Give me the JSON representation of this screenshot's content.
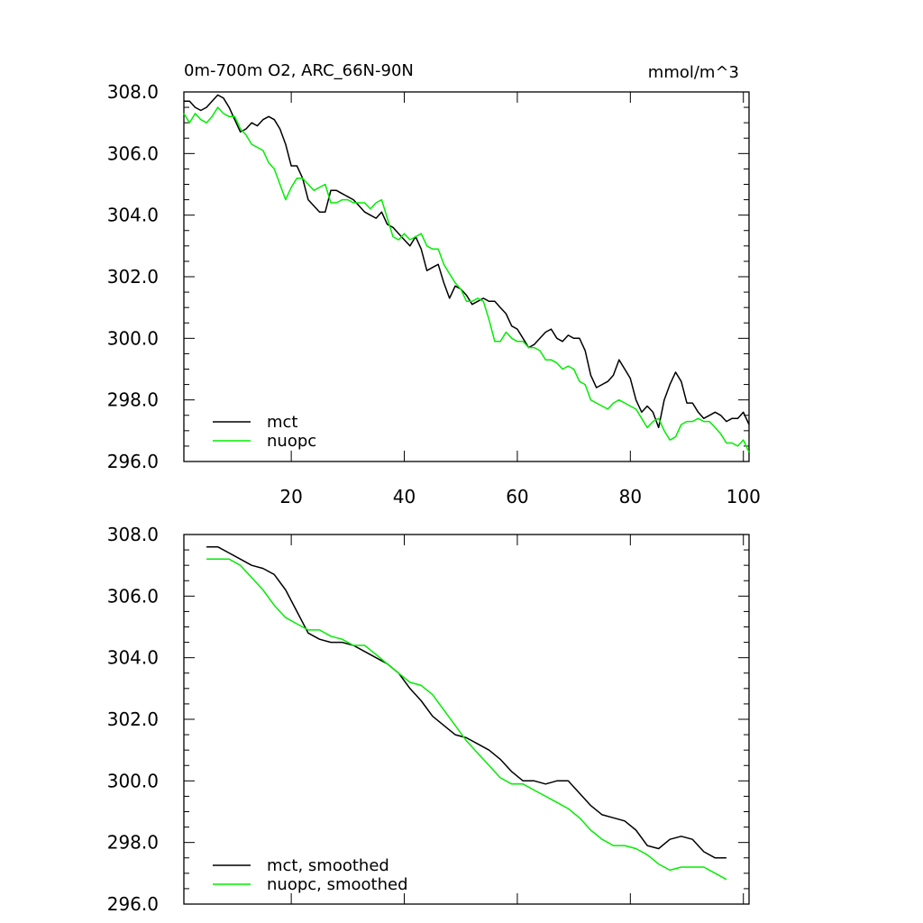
{
  "chart_data": [
    {
      "type": "line",
      "title": "0m-700m O2, ARC_66N-90N",
      "units": "mmol/m^3",
      "xlim": [
        1,
        101
      ],
      "ylim": [
        296.0,
        308.0
      ],
      "xticks": [
        20,
        40,
        60,
        80,
        100
      ],
      "xtick_labels": [
        "20",
        "40",
        "60",
        "80",
        "100"
      ],
      "yticks": [
        296.0,
        298.0,
        300.0,
        302.0,
        304.0,
        306.0,
        308.0
      ],
      "ytick_labels": [
        "296.0",
        "298.0",
        "300.0",
        "302.0",
        "304.0",
        "306.0",
        "308.0"
      ],
      "legend_position": "bottom-left",
      "x": [
        1,
        2,
        3,
        4,
        5,
        6,
        7,
        8,
        9,
        10,
        11,
        12,
        13,
        14,
        15,
        16,
        17,
        18,
        19,
        20,
        21,
        22,
        23,
        24,
        25,
        26,
        27,
        28,
        29,
        30,
        31,
        32,
        33,
        34,
        35,
        36,
        37,
        38,
        39,
        40,
        41,
        42,
        43,
        44,
        45,
        46,
        47,
        48,
        49,
        50,
        51,
        52,
        53,
        54,
        55,
        56,
        57,
        58,
        59,
        60,
        61,
        62,
        63,
        64,
        65,
        66,
        67,
        68,
        69,
        70,
        71,
        72,
        73,
        74,
        75,
        76,
        77,
        78,
        79,
        80,
        81,
        82,
        83,
        84,
        85,
        86,
        87,
        88,
        89,
        90,
        91,
        92,
        93,
        94,
        95,
        96,
        97,
        98,
        99,
        100,
        101
      ],
      "series": [
        {
          "name": "mct",
          "color": "#000000",
          "values": [
            307.7,
            307.7,
            307.5,
            307.4,
            307.5,
            307.7,
            307.9,
            307.8,
            307.5,
            307.1,
            306.7,
            306.8,
            307.0,
            306.9,
            307.1,
            307.2,
            307.1,
            306.8,
            306.3,
            305.6,
            305.6,
            305.2,
            304.5,
            304.3,
            304.1,
            304.1,
            304.8,
            304.8,
            304.7,
            304.6,
            304.5,
            304.3,
            304.1,
            304.0,
            303.9,
            304.1,
            303.7,
            303.6,
            303.4,
            303.2,
            303.0,
            303.3,
            302.9,
            302.2,
            302.3,
            302.4,
            301.8,
            301.3,
            301.7,
            301.6,
            301.4,
            301.1,
            301.2,
            301.3,
            301.2,
            301.2,
            301.0,
            300.8,
            300.4,
            300.3,
            300.0,
            299.7,
            299.8,
            300.0,
            300.2,
            300.3,
            300.0,
            299.9,
            300.1,
            300.0,
            300.0,
            299.6,
            298.8,
            298.4,
            298.5,
            298.6,
            298.8,
            299.3,
            299.0,
            298.7,
            298.0,
            297.6,
            297.8,
            297.6,
            297.1,
            298.0,
            298.5,
            298.9,
            298.6,
            297.9,
            297.9,
            297.6,
            297.4,
            297.5,
            297.6,
            297.5,
            297.3,
            297.4,
            297.4,
            297.6,
            297.2
          ]
        },
        {
          "name": "nuopc",
          "color": "#00ee00",
          "values": [
            307.3,
            307.0,
            307.3,
            307.1,
            307.0,
            307.2,
            307.5,
            307.3,
            307.2,
            307.2,
            306.8,
            306.6,
            306.3,
            306.2,
            306.1,
            305.7,
            305.5,
            305.0,
            304.5,
            304.9,
            305.2,
            305.2,
            305.0,
            304.8,
            304.9,
            305.0,
            304.4,
            304.4,
            304.5,
            304.5,
            304.4,
            304.4,
            304.4,
            304.2,
            304.4,
            304.5,
            303.9,
            303.3,
            303.2,
            303.4,
            303.2,
            303.3,
            303.4,
            303.0,
            302.9,
            302.9,
            302.4,
            302.1,
            301.8,
            301.6,
            301.2,
            301.2,
            301.3,
            301.2,
            300.6,
            299.9,
            299.9,
            300.2,
            300.0,
            299.9,
            299.9,
            299.7,
            299.7,
            299.6,
            299.3,
            299.3,
            299.2,
            299.0,
            299.1,
            299.0,
            298.6,
            298.5,
            298.0,
            297.9,
            297.8,
            297.7,
            297.9,
            298.0,
            297.9,
            297.8,
            297.7,
            297.4,
            297.1,
            297.3,
            297.4,
            297.0,
            296.7,
            296.8,
            297.2,
            297.3,
            297.3,
            297.4,
            297.3,
            297.3,
            297.1,
            296.9,
            296.6,
            296.6,
            296.5,
            296.7,
            296.3
          ]
        }
      ]
    },
    {
      "type": "line",
      "title": "",
      "units": "",
      "xlim": [
        1,
        101
      ],
      "ylim": [
        296.0,
        308.0
      ],
      "xticks": [
        20,
        40,
        60,
        80,
        100
      ],
      "yticks": [
        296.0,
        298.0,
        300.0,
        302.0,
        304.0,
        306.0,
        308.0
      ],
      "ytick_labels": [
        "296.0",
        "298.0",
        "300.0",
        "302.0",
        "304.0",
        "306.0",
        "308.0"
      ],
      "legend_position": "bottom-left",
      "x": [
        5,
        7,
        9,
        11,
        13,
        15,
        17,
        19,
        21,
        23,
        25,
        27,
        29,
        31,
        33,
        35,
        37,
        39,
        41,
        43,
        45,
        47,
        49,
        51,
        53,
        55,
        57,
        59,
        61,
        63,
        65,
        67,
        69,
        71,
        73,
        75,
        77,
        79,
        81,
        83,
        85,
        87,
        89,
        91,
        93,
        95,
        97
      ],
      "series": [
        {
          "name": "mct, smoothed",
          "color": "#000000",
          "values": [
            307.6,
            307.6,
            307.4,
            307.2,
            307.0,
            306.9,
            306.7,
            306.2,
            305.5,
            304.8,
            304.6,
            304.5,
            304.5,
            304.4,
            304.2,
            304.0,
            303.8,
            303.5,
            303.0,
            302.6,
            302.1,
            301.8,
            301.5,
            301.4,
            301.2,
            301.0,
            300.7,
            300.3,
            300.0,
            300.0,
            299.9,
            300.0,
            300.0,
            299.6,
            299.2,
            298.9,
            298.8,
            298.7,
            298.4,
            297.9,
            297.8,
            298.1,
            298.2,
            298.1,
            297.7,
            297.5,
            297.5
          ]
        },
        {
          "name": "nuopc, smoothed",
          "color": "#00ee00",
          "values": [
            307.2,
            307.2,
            307.2,
            307.0,
            306.6,
            306.2,
            305.7,
            305.3,
            305.1,
            304.9,
            304.9,
            304.7,
            304.6,
            304.4,
            304.4,
            304.1,
            303.8,
            303.5,
            303.2,
            303.1,
            302.8,
            302.3,
            301.8,
            301.3,
            300.9,
            300.5,
            300.1,
            299.9,
            299.9,
            299.7,
            299.5,
            299.3,
            299.1,
            298.8,
            298.4,
            298.1,
            297.9,
            297.9,
            297.8,
            297.6,
            297.3,
            297.1,
            297.2,
            297.2,
            297.2,
            297.0,
            296.8
          ]
        }
      ]
    }
  ]
}
